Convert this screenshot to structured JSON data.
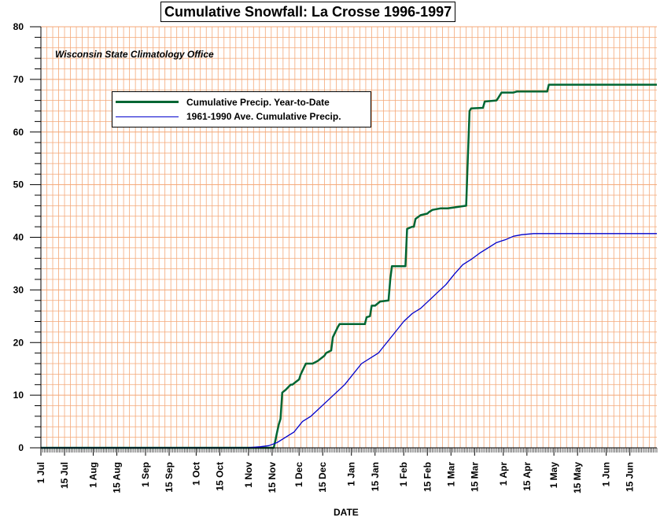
{
  "chart_data": {
    "type": "line",
    "title": "Cumulative Snowfall: La Crosse 1996-1997",
    "annotation": "Wisconsin State Climatology Office",
    "xlabel": "DATE",
    "ylabel": "",
    "ylim": [
      0,
      80
    ],
    "yticks": [
      0,
      10,
      20,
      30,
      40,
      50,
      60,
      70,
      80
    ],
    "xticks": [
      {
        "label": "1 Jul",
        "day": 0
      },
      {
        "label": "15 Jul",
        "day": 14
      },
      {
        "label": "1 Aug",
        "day": 31
      },
      {
        "label": "15 Aug",
        "day": 45
      },
      {
        "label": "1 Sep",
        "day": 62
      },
      {
        "label": "15 Sep",
        "day": 76
      },
      {
        "label": "1 Oct",
        "day": 92
      },
      {
        "label": "15 Oct",
        "day": 106
      },
      {
        "label": "1 Nov",
        "day": 123
      },
      {
        "label": "15 Nov",
        "day": 137
      },
      {
        "label": "1 Dec",
        "day": 153
      },
      {
        "label": "15 Dec",
        "day": 167
      },
      {
        "label": "1 Jan",
        "day": 184
      },
      {
        "label": "15 Jan",
        "day": 198
      },
      {
        "label": "1 Feb",
        "day": 215
      },
      {
        "label": "15 Feb",
        "day": 229
      },
      {
        "label": "1 Mar",
        "day": 243
      },
      {
        "label": "15 Mar",
        "day": 257
      },
      {
        "label": "1 Apr",
        "day": 274
      },
      {
        "label": "15 Apr",
        "day": 288
      },
      {
        "label": "1 May",
        "day": 304
      },
      {
        "label": "15 May",
        "day": 318
      },
      {
        "label": "1 Jun",
        "day": 335
      },
      {
        "label": "15 Jun",
        "day": 349
      }
    ],
    "x_day_range": [
      0,
      365
    ],
    "grid": true,
    "legend_position": "top-left",
    "colors": {
      "grid": "#f4a878",
      "series_actual": "#006633",
      "series_normal": "#0000cc"
    },
    "series": [
      {
        "name": "Cumulative Precip. Year-to-Date",
        "color": "#006633",
        "days": [
          0,
          138,
          139,
          140,
          141,
          142,
          143,
          145,
          148,
          149,
          151,
          153,
          154,
          157,
          158,
          161,
          164,
          168,
          169,
          172,
          173,
          176,
          177,
          180,
          182,
          185,
          192,
          193,
          195,
          196,
          198,
          201,
          206,
          207,
          208,
          209,
          216,
          217,
          220,
          221,
          222,
          225,
          229,
          230,
          232,
          237,
          241,
          252,
          253,
          254,
          255,
          262,
          263,
          270,
          271,
          273,
          279,
          280,
          282,
          300,
          301,
          365
        ],
        "values": [
          0,
          0,
          1.5,
          3,
          4.5,
          5.5,
          10.5,
          11,
          12,
          12,
          12.5,
          13,
          14,
          16,
          16,
          16,
          16.5,
          17.5,
          18,
          18.5,
          21,
          23,
          23.5,
          23.5,
          23.5,
          23.5,
          23.5,
          24.8,
          25,
          27,
          27,
          27.8,
          28,
          32,
          34.5,
          34.5,
          34.5,
          41.6,
          42,
          42,
          43.5,
          44.2,
          44.5,
          44.8,
          45.2,
          45.5,
          45.5,
          46,
          55,
          64,
          64.5,
          64.6,
          65.8,
          66,
          66.5,
          67.5,
          67.5,
          67.5,
          67.7,
          67.7,
          69,
          69
        ]
      },
      {
        "name": "1961-1990 Ave. Cumulative Precip.",
        "color": "#0000cc",
        "days": [
          0,
          122,
          130,
          135,
          140,
          145,
          150,
          155,
          160,
          170,
          180,
          190,
          200,
          210,
          215,
          220,
          225,
          230,
          235,
          240,
          245,
          250,
          255,
          260,
          265,
          270,
          275,
          280,
          285,
          292,
          300,
          365
        ],
        "values": [
          0,
          0,
          0.2,
          0.4,
          1,
          2,
          3,
          5,
          6,
          9,
          12,
          16,
          18,
          22,
          24,
          25.5,
          26.5,
          28,
          29.5,
          31,
          33,
          34.8,
          35.8,
          37,
          38,
          39,
          39.5,
          40.2,
          40.5,
          40.7,
          40.7,
          40.7
        ]
      }
    ]
  }
}
